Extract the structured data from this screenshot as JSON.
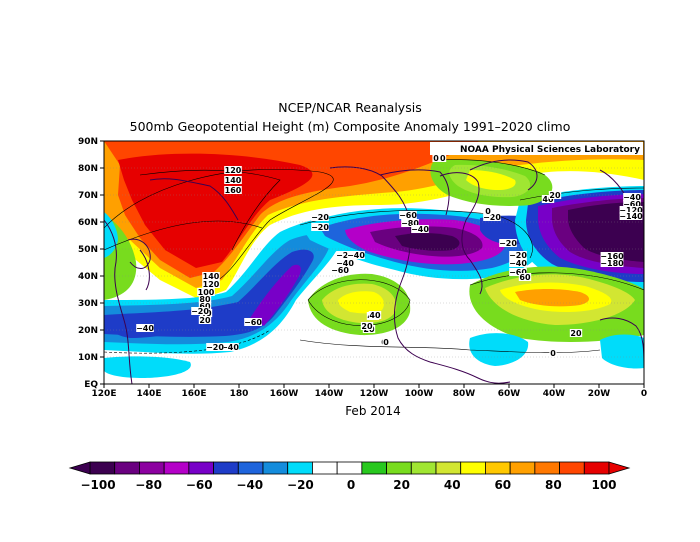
{
  "title": "NCEP/NCAR Reanalysis",
  "subtitle": "500mb Geopotential Height (m) Composite Anomaly 1991–2020 climo",
  "credit": "NOAA Physical Sciences Laboratory",
  "period": "Feb 2014",
  "lat_labels": [
    "90N",
    "80N",
    "70N",
    "60N",
    "50N",
    "40N",
    "30N",
    "20N",
    "10N",
    "EQ"
  ],
  "lon_labels": [
    "120E",
    "140E",
    "160E",
    "180",
    "160W",
    "140W",
    "120W",
    "100W",
    "80W",
    "60W",
    "40W",
    "20W",
    "0"
  ],
  "colorbar": {
    "colors": [
      "#3c0050",
      "#6a0080",
      "#8c00a0",
      "#b400c8",
      "#7800c8",
      "#1e3cc8",
      "#1e64dc",
      "#148cdc",
      "#00dcfa",
      "#ffffff",
      "#ffffff",
      "#28c81e",
      "#78dc1e",
      "#a0e632",
      "#d2e632",
      "#ffff00",
      "#ffc800",
      "#ffa000",
      "#ff7800",
      "#ff4600",
      "#e60000"
    ],
    "labels": [
      "−100",
      "−80",
      "−60",
      "−40",
      "−20",
      "0",
      "20",
      "40",
      "60",
      "80",
      "100"
    ]
  },
  "contour_labels": [
    "120",
    "140",
    "160",
    "140",
    "120",
    "100",
    "80",
    "60",
    "40",
    "20",
    "−20",
    "−40",
    "−60",
    "−40",
    "−20",
    "−40",
    "−60",
    "−80",
    "−40",
    "−20",
    "−20",
    "−40",
    "−60",
    "−20",
    "20",
    "60",
    "40",
    "20",
    "40",
    "20",
    "0",
    "0",
    "−160",
    "−180",
    "−40",
    "−60",
    "−120",
    "−140",
    "−20",
    "0",
    "0",
    "20",
    "20",
    "−20",
    "−40",
    "−60",
    "40",
    "−20",
    "0"
  ]
}
